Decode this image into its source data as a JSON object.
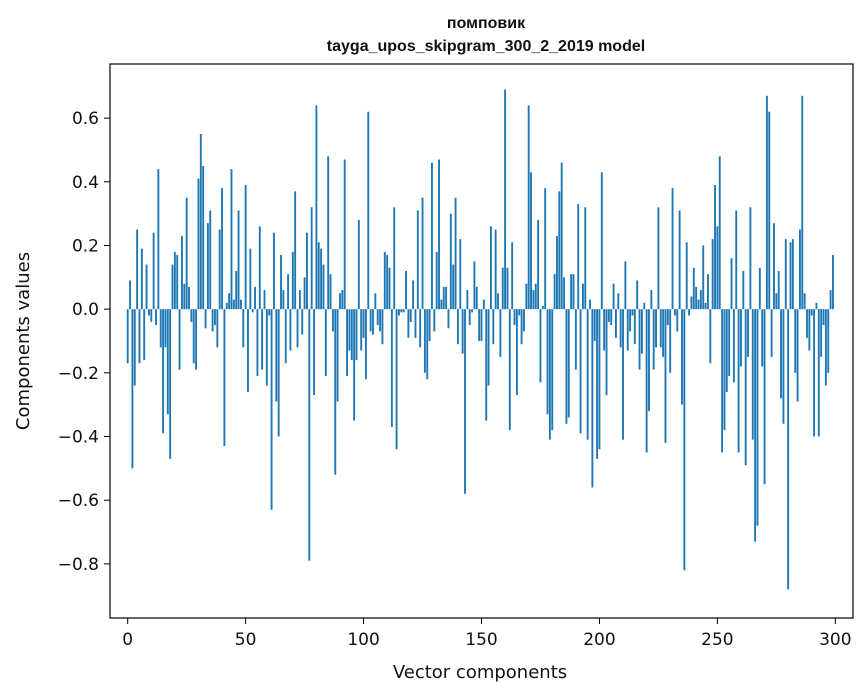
{
  "chart_data": {
    "type": "bar",
    "title": "помповик",
    "subtitle": "tayga_upos_skipgram_300_2_2019 model",
    "xlabel": "Vector components",
    "ylabel": "Components values",
    "xlim": [
      -7.5,
      307.5
    ],
    "ylim": [
      -0.97,
      0.77
    ],
    "xticks": [
      0,
      50,
      100,
      150,
      200,
      250,
      300
    ],
    "xtick_labels": [
      "0",
      "50",
      "100",
      "150",
      "200",
      "250",
      "300"
    ],
    "yticks": [
      -0.8,
      -0.6,
      -0.4,
      -0.2,
      0.0,
      0.2,
      0.4,
      0.6
    ],
    "ytick_labels": [
      "−0.8",
      "−0.6",
      "−0.4",
      "−0.2",
      "0.0",
      "0.2",
      "0.4",
      "0.6"
    ],
    "grid": false,
    "bar_color": "#1f77b4",
    "values": [
      -0.17,
      0.09,
      -0.5,
      -0.24,
      0.25,
      -0.17,
      0.19,
      -0.16,
      0.14,
      -0.02,
      -0.04,
      0.24,
      -0.05,
      0.44,
      -0.12,
      -0.39,
      -0.12,
      -0.33,
      -0.47,
      0.14,
      0.18,
      0.17,
      -0.19,
      0.23,
      0.08,
      0.35,
      0.07,
      -0.04,
      -0.17,
      -0.19,
      0.41,
      0.55,
      0.45,
      -0.06,
      0.27,
      0.31,
      -0.07,
      -0.05,
      -0.12,
      0.25,
      0.38,
      -0.43,
      0.02,
      0.05,
      0.44,
      0.03,
      0.12,
      0.31,
      0.03,
      -0.12,
      0.39,
      -0.26,
      0.19,
      -0.01,
      0.07,
      -0.21,
      0.26,
      -0.19,
      0.06,
      -0.24,
      -0.02,
      -0.63,
      0.24,
      -0.29,
      -0.4,
      0.17,
      0.06,
      -0.17,
      0.11,
      -0.13,
      0.18,
      0.37,
      -0.12,
      0.06,
      -0.08,
      0.1,
      0.24,
      -0.79,
      0.32,
      -0.27,
      0.64,
      0.21,
      0.19,
      0.14,
      -0.21,
      0.48,
      0.11,
      -0.07,
      -0.52,
      -0.29,
      0.05,
      0.06,
      0.47,
      -0.21,
      -0.13,
      -0.16,
      -0.35,
      -0.16,
      0.28,
      -0.13,
      -0.09,
      -0.22,
      0.62,
      -0.07,
      -0.08,
      0.05,
      -0.05,
      -0.07,
      -0.11,
      0.18,
      0.17,
      0.13,
      -0.37,
      0.32,
      -0.44,
      -0.02,
      -0.01,
      -0.01,
      0.12,
      -0.09,
      -0.04,
      0.09,
      -0.09,
      0.31,
      -0.12,
      0.35,
      -0.2,
      -0.22,
      -0.1,
      0.46,
      -0.07,
      0.18,
      0.47,
      0.03,
      0.07,
      0.07,
      -0.06,
      0.3,
      0.14,
      0.35,
      -0.11,
      0.22,
      -0.14,
      -0.58,
      0.06,
      -0.05,
      -0.01,
      0.15,
      0.07,
      -0.1,
      -0.1,
      0.03,
      -0.35,
      -0.24,
      0.26,
      -0.11,
      0.25,
      0.05,
      -0.15,
      0.13,
      0.69,
      0.13,
      -0.38,
      0.21,
      -0.05,
      -0.27,
      -0.02,
      -0.11,
      -0.07,
      0.08,
      0.64,
      0.43,
      0.06,
      0.08,
      0.28,
      -0.23,
      0.01,
      0.38,
      -0.33,
      -0.41,
      -0.38,
      0.11,
      0.23,
      0.37,
      0.46,
      0.1,
      -0.36,
      -0.34,
      0.11,
      0.11,
      -0.19,
      0.33,
      -0.39,
      0.08,
      0.32,
      -0.41,
      0.03,
      -0.56,
      -0.1,
      -0.47,
      -0.44,
      0.43,
      -0.13,
      -0.27,
      -0.04,
      -0.05,
      0.08,
      -0.09,
      0.05,
      -0.12,
      -0.41,
      0.15,
      -0.13,
      -0.07,
      -0.02,
      -0.11,
      0.09,
      -0.19,
      -0.14,
      0.02,
      -0.45,
      -0.32,
      0.06,
      -0.19,
      -0.12,
      0.32,
      -0.12,
      -0.15,
      -0.42,
      -0.05,
      -0.2,
      0.38,
      -0.02,
      -0.07,
      0.31,
      -0.3,
      -0.82,
      0.21,
      -0.02,
      0.04,
      0.13,
      0.07,
      0.03,
      0.06,
      0.2,
      0.02,
      0.11,
      -0.17,
      0.22,
      0.39,
      0.26,
      0.48,
      -0.45,
      -0.38,
      -0.26,
      -0.21,
      0.16,
      -0.23,
      0.31,
      -0.45,
      -0.18,
      0.12,
      -0.49,
      -0.15,
      0.32,
      -0.41,
      -0.73,
      -0.68,
      0.13,
      -0.18,
      -0.55,
      0.67,
      0.62,
      -0.15,
      0.27,
      0.05,
      0.12,
      -0.28,
      -0.36,
      0.22,
      -0.88,
      0.21,
      0.22,
      -0.2,
      -0.29,
      0.25,
      0.67,
      0.05,
      -0.09,
      -0.13,
      -0.02,
      -0.4,
      0.02,
      -0.4,
      -0.15,
      -0.05,
      -0.24,
      -0.2,
      0.06,
      0.17
    ]
  }
}
